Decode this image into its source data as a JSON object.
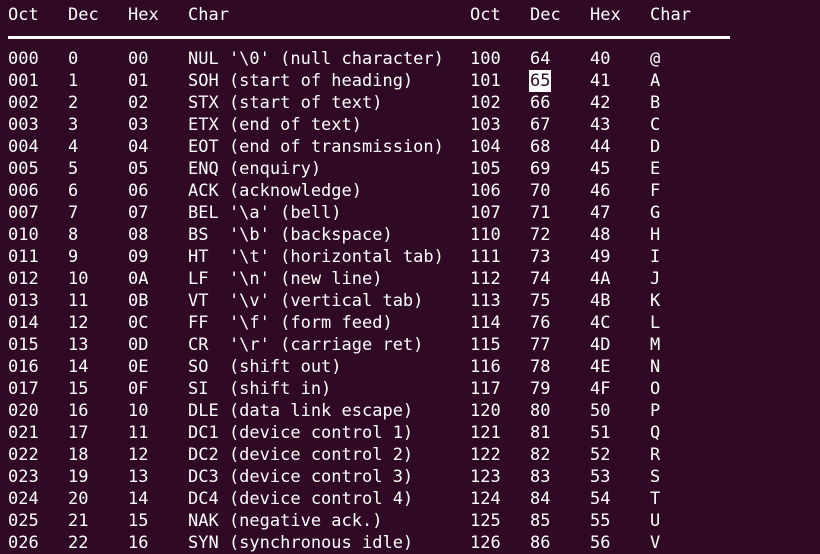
{
  "colors": {
    "background": "#300a24",
    "foreground": "#ffffff",
    "highlight_bg": "#ffffff",
    "highlight_fg": "#300a24"
  },
  "header": {
    "oct": "Oct",
    "dec": "Dec",
    "hex": "Hex",
    "char": "Char"
  },
  "ascii_table": {
    "rows": [
      [
        "000",
        "0",
        "00",
        "NUL '\\0' (null character)",
        "100",
        "64",
        "40",
        "@"
      ],
      [
        "001",
        "1",
        "01",
        "SOH (start of heading)",
        "101",
        "65",
        "41",
        "A"
      ],
      [
        "002",
        "2",
        "02",
        "STX (start of text)",
        "102",
        "66",
        "42",
        "B"
      ],
      [
        "003",
        "3",
        "03",
        "ETX (end of text)",
        "103",
        "67",
        "43",
        "C"
      ],
      [
        "004",
        "4",
        "04",
        "EOT (end of transmission)",
        "104",
        "68",
        "44",
        "D"
      ],
      [
        "005",
        "5",
        "05",
        "ENQ (enquiry)",
        "105",
        "69",
        "45",
        "E"
      ],
      [
        "006",
        "6",
        "06",
        "ACK (acknowledge)",
        "106",
        "70",
        "46",
        "F"
      ],
      [
        "007",
        "7",
        "07",
        "BEL '\\a' (bell)",
        "107",
        "71",
        "47",
        "G"
      ],
      [
        "010",
        "8",
        "08",
        "BS  '\\b' (backspace)",
        "110",
        "72",
        "48",
        "H"
      ],
      [
        "011",
        "9",
        "09",
        "HT  '\\t' (horizontal tab)",
        "111",
        "73",
        "49",
        "I"
      ],
      [
        "012",
        "10",
        "0A",
        "LF  '\\n' (new line)",
        "112",
        "74",
        "4A",
        "J"
      ],
      [
        "013",
        "11",
        "0B",
        "VT  '\\v' (vertical tab)",
        "113",
        "75",
        "4B",
        "K"
      ],
      [
        "014",
        "12",
        "0C",
        "FF  '\\f' (form feed)",
        "114",
        "76",
        "4C",
        "L"
      ],
      [
        "015",
        "13",
        "0D",
        "CR  '\\r' (carriage ret)",
        "115",
        "77",
        "4D",
        "M"
      ],
      [
        "016",
        "14",
        "0E",
        "SO  (shift out)",
        "116",
        "78",
        "4E",
        "N"
      ],
      [
        "017",
        "15",
        "0F",
        "SI  (shift in)",
        "117",
        "79",
        "4F",
        "O"
      ],
      [
        "020",
        "16",
        "10",
        "DLE (data link escape)",
        "120",
        "80",
        "50",
        "P"
      ],
      [
        "021",
        "17",
        "11",
        "DC1 (device control 1)",
        "121",
        "81",
        "51",
        "Q"
      ],
      [
        "022",
        "18",
        "12",
        "DC2 (device control 2)",
        "122",
        "82",
        "52",
        "R"
      ],
      [
        "023",
        "19",
        "13",
        "DC3 (device control 3)",
        "123",
        "83",
        "53",
        "S"
      ],
      [
        "024",
        "20",
        "14",
        "DC4 (device control 4)",
        "124",
        "84",
        "54",
        "T"
      ],
      [
        "025",
        "21",
        "15",
        "NAK (negative ack.)",
        "125",
        "85",
        "55",
        "U"
      ],
      [
        "026",
        "22",
        "16",
        "SYN (synchronous idle)",
        "126",
        "86",
        "56",
        "V"
      ]
    ]
  },
  "highlight": {
    "row_index": 1,
    "cell_index": 5,
    "value": "65"
  }
}
